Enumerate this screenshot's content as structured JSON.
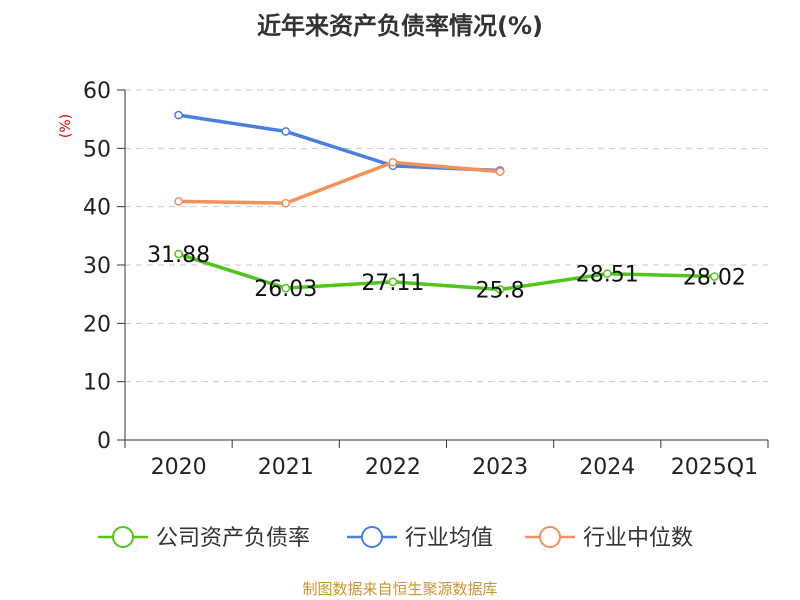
{
  "chart_data": {
    "type": "line",
    "title": "近年来资产负债率情况(%)",
    "ylabel": "(%)",
    "ylim": [
      0,
      60
    ],
    "yticks": [
      0,
      10,
      20,
      30,
      40,
      50,
      60
    ],
    "grid": true,
    "legend_position": "bottom",
    "categories": [
      "2020",
      "2021",
      "2022",
      "2023",
      "2024",
      "2025Q1"
    ],
    "series": [
      {
        "name": "公司资产负债率",
        "color": "#52c41a",
        "values": [
          31.88,
          26.03,
          27.11,
          25.8,
          28.51,
          28.02
        ],
        "data_labels": [
          "31.88",
          "26.03",
          "27.11",
          "25.8",
          "28.51",
          "28.02"
        ]
      },
      {
        "name": "行业均值",
        "color": "#4a7fe0",
        "values": [
          55.7,
          52.9,
          47.0,
          46.2,
          null,
          null
        ]
      },
      {
        "name": "行业中位数",
        "color": "#f4905a",
        "values": [
          40.9,
          40.6,
          47.6,
          46.0,
          null,
          null
        ]
      }
    ]
  },
  "footer": {
    "source": "制图数据来自恒生聚源数据库"
  }
}
